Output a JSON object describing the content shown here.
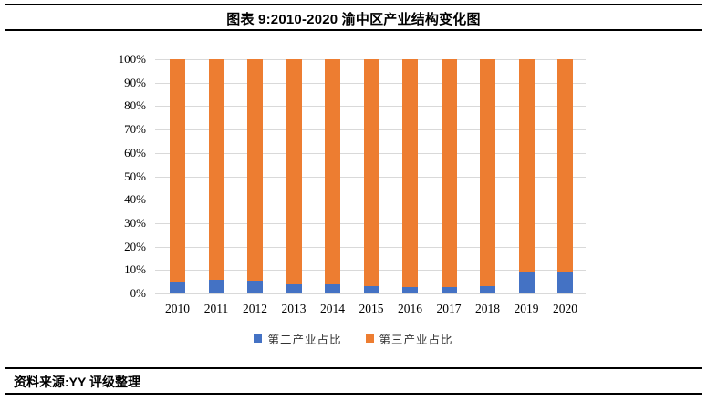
{
  "header": {
    "title": "图表 9:2010-2020 渝中区产业结构变化图"
  },
  "footer": {
    "source": "资料来源:YY 评级整理"
  },
  "colors": {
    "secondary_series": "#4472C4",
    "tertiary_series": "#ED7D31",
    "gridline": "#D9D9D9",
    "rule": "#000000"
  },
  "chart_data": {
    "type": "bar",
    "stacked": true,
    "percent_stacked": true,
    "title": "图表 9:2010-2020 渝中区产业结构变化图",
    "categories": [
      "2010",
      "2011",
      "2012",
      "2013",
      "2014",
      "2015",
      "2016",
      "2017",
      "2018",
      "2019",
      "2020"
    ],
    "series": [
      {
        "name": "第二产业占比",
        "color": "#4472C4",
        "values": [
          5.2,
          5.7,
          5.3,
          3.8,
          3.7,
          3.1,
          2.8,
          2.7,
          3.0,
          9.2,
          9.4
        ]
      },
      {
        "name": "第三产业占比",
        "color": "#ED7D31",
        "values": [
          94.8,
          94.3,
          94.7,
          96.2,
          96.3,
          96.9,
          97.2,
          97.3,
          97.0,
          90.8,
          90.6
        ]
      }
    ],
    "xlabel": "",
    "ylabel": "",
    "ylim": [
      0,
      100
    ],
    "y_tick_labels": [
      "0%",
      "10%",
      "20%",
      "30%",
      "40%",
      "50%",
      "60%",
      "70%",
      "80%",
      "90%",
      "100%"
    ],
    "grid": true,
    "legend_position": "bottom"
  }
}
